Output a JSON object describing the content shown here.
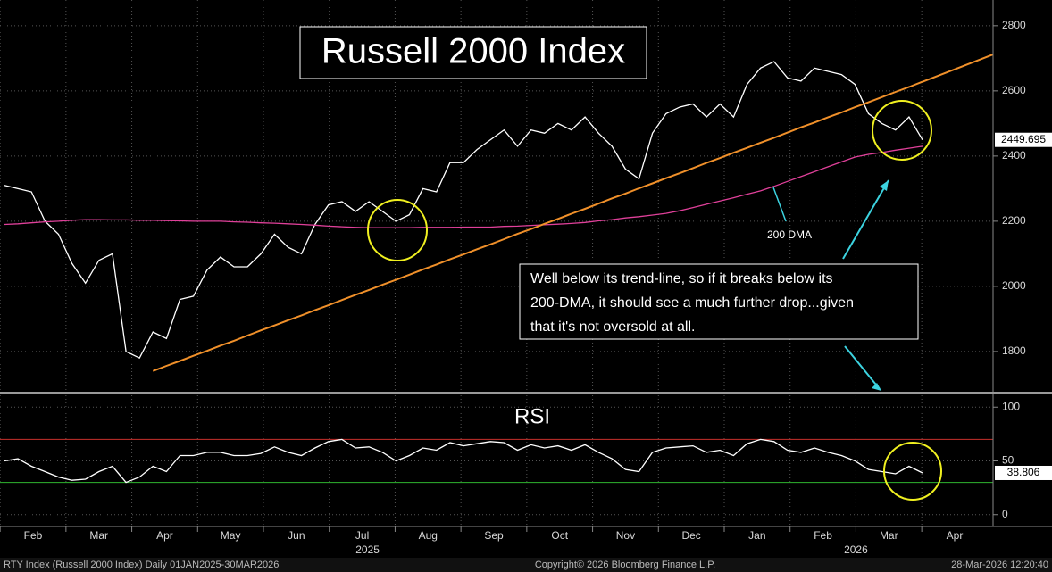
{
  "chart_data": [
    {
      "type": "line",
      "title": "Russell 2000 Index",
      "ylim": [
        1682,
        2879
      ],
      "yticks": [
        1800,
        2000,
        2200,
        2400,
        2600,
        2800
      ],
      "grid": true,
      "series": [
        {
          "color": "#ffffff",
          "values": [
            2310,
            2300,
            2290,
            2200,
            2160,
            2070,
            2010,
            2080,
            2100,
            1800,
            1780,
            1860,
            1840,
            1960,
            1970,
            2050,
            2090,
            2060,
            2060,
            2100,
            2160,
            2120,
            2100,
            2190,
            2250,
            2260,
            2230,
            2260,
            2230,
            2200,
            2220,
            2300,
            2290,
            2380,
            2380,
            2420,
            2450,
            2480,
            2430,
            2480,
            2470,
            2500,
            2480,
            2520,
            2470,
            2430,
            2360,
            2330,
            2470,
            2530,
            2550,
            2560,
            2520,
            2560,
            2520,
            2620,
            2670,
            2690,
            2640,
            2630,
            2670,
            2660,
            2650,
            2620,
            2530,
            2500,
            2480,
            2520,
            2449.695
          ]
        },
        {
          "name": "200 DMA",
          "color": "#e0409a",
          "values": [
            2190,
            2192,
            2195,
            2198,
            2200,
            2203,
            2205,
            2205,
            2204,
            2204,
            2203,
            2203,
            2202,
            2201,
            2200,
            2200,
            2200,
            2198,
            2197,
            2195,
            2194,
            2192,
            2190,
            2188,
            2185,
            2183,
            2181,
            2180,
            2180,
            2180,
            2180,
            2181,
            2181,
            2181,
            2182,
            2182,
            2182,
            2184,
            2185,
            2187,
            2189,
            2191,
            2193,
            2196,
            2201,
            2205,
            2210,
            2214,
            2219,
            2224,
            2232,
            2242,
            2252,
            2262,
            2272,
            2283,
            2293,
            2307,
            2322,
            2337,
            2352,
            2367,
            2382,
            2397,
            2405,
            2411,
            2418,
            2424,
            2430
          ]
        },
        {
          "color": "#f0902a",
          "values": [
            null,
            null,
            null,
            null,
            null,
            null,
            null,
            null,
            null,
            null,
            null,
            1740,
            1756,
            1771,
            1787,
            1802,
            1818,
            1833,
            1849,
            1865,
            1880,
            1896,
            1911,
            1927,
            1942,
            1958,
            1974,
            1989,
            2005,
            2020,
            2036,
            2052,
            2067,
            2083,
            2098,
            2114,
            2129,
            2145,
            2161,
            2176,
            2192,
            2207,
            2223,
            2238,
            2254,
            2270,
            2285,
            2301,
            2316,
            2332,
            2347,
            2363,
            2379,
            2394,
            2410,
            2425,
            2441,
            2456,
            2472,
            2488,
            2503,
            2519,
            2534,
            2550,
            2565,
            2581,
            2597,
            2612,
            2628
          ]
        }
      ]
    },
    {
      "type": "line",
      "title": "RSI",
      "ylim": [
        -11,
        111
      ],
      "yticks": [
        0,
        50,
        100
      ],
      "grid": true,
      "levels": [
        {
          "value": 70,
          "color": "#c8302c"
        },
        {
          "value": 30,
          "color": "#2fb52f"
        }
      ],
      "series": [
        {
          "color": "#ffffff",
          "values": [
            50,
            52,
            45,
            40,
            35,
            32,
            33,
            40,
            45,
            30,
            35,
            45,
            40,
            55,
            55,
            58,
            58,
            55,
            55,
            57,
            63,
            58,
            55,
            62,
            68,
            70,
            62,
            63,
            58,
            50,
            55,
            62,
            60,
            67,
            64,
            66,
            68,
            67,
            60,
            65,
            62,
            64,
            60,
            65,
            58,
            52,
            42,
            40,
            58,
            62,
            63,
            64,
            58,
            60,
            55,
            66,
            70,
            68,
            60,
            58,
            62,
            58,
            55,
            50,
            42,
            40,
            38,
            45,
            38.806
          ]
        }
      ]
    }
  ],
  "annotation": [
    "Well below its trend-line, so if it breaks below its",
    "200-DMA, it should see a much further drop...given",
    "that it's not oversold at all."
  ],
  "x_axis": {
    "months": [
      "Feb",
      "Mar",
      "Apr",
      "May",
      "Jun",
      "Jul",
      "Aug",
      "Sep",
      "Oct",
      "Nov",
      "Dec",
      "Jan",
      "Feb",
      "Mar",
      "Apr"
    ],
    "years": [
      "2025",
      "2026"
    ]
  },
  "footer": {
    "left": "RTY Index (Russell 2000 Index) Daily 01JAN2025-30MAR2026",
    "center": "Copyright© 2026 Bloomberg Finance L.P.",
    "right": "28-Mar-2026 12:20:40"
  }
}
